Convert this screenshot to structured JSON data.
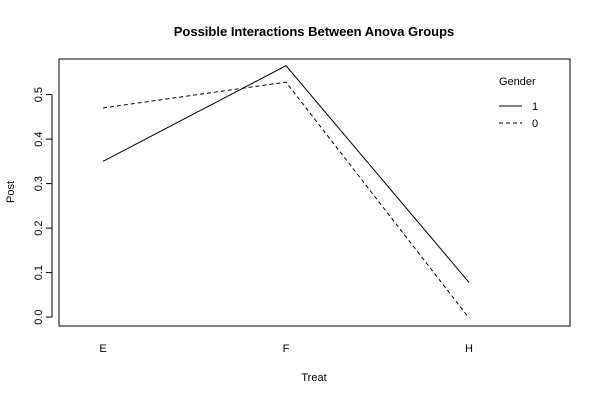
{
  "chart_data": {
    "type": "line",
    "title": "Possible Interactions Between Anova Groups",
    "xlabel": "Treat",
    "ylabel": "Post",
    "categories": [
      "E",
      "F",
      "H"
    ],
    "yticks": [
      "0.0",
      "0.1",
      "0.2",
      "0.3",
      "0.4",
      "0.5"
    ],
    "ytick_values": [
      0.0,
      0.1,
      0.2,
      0.3,
      0.4,
      0.5
    ],
    "ylim": [
      -0.02,
      0.58
    ],
    "grid": false,
    "legend": {
      "title": "Gender",
      "placement": "top-right",
      "entries": [
        "1",
        "0"
      ]
    },
    "series": [
      {
        "name": "1",
        "line_style": "solid",
        "values": [
          0.35,
          0.565,
          0.078
        ]
      },
      {
        "name": "0",
        "line_style": "dashed",
        "values": [
          0.47,
          0.528,
          -0.002
        ]
      }
    ]
  }
}
